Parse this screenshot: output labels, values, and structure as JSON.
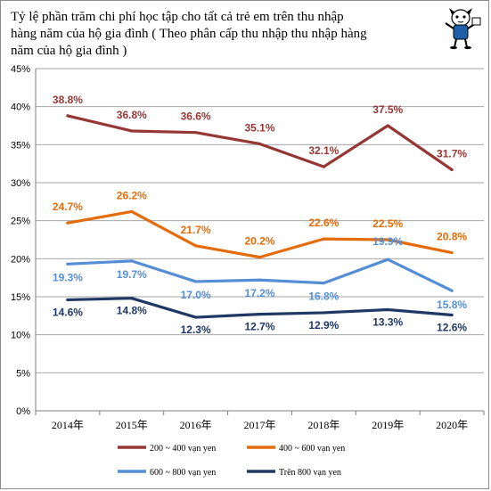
{
  "chart_data": {
    "type": "line",
    "title_lines": [
      "Tỷ lệ phần trăm chi phí học tập cho tất cả trẻ em trên thu nhập",
      "hàng năm của hộ gia đình ( Theo phân cấp thu nhập thu nhập hàng",
      "năm của hộ gia đình )"
    ],
    "categories": [
      "2014年",
      "2015年",
      "2016年",
      "2017年",
      "2018年",
      "2019年",
      "2020年"
    ],
    "ylim": [
      0,
      45
    ],
    "yticks": [
      "0%",
      "5%",
      "10%",
      "15%",
      "20%",
      "25%",
      "30%",
      "35%",
      "40%",
      "45%"
    ],
    "grid": true,
    "series": [
      {
        "name": "200 ~ 400 vạn yen",
        "color": "#953735",
        "values": [
          38.8,
          36.8,
          36.6,
          35.1,
          32.1,
          37.5,
          31.7
        ],
        "labels": [
          "38.8%",
          "36.8%",
          "36.6%",
          "35.1%",
          "32.1%",
          "37.5%",
          "31.7%"
        ]
      },
      {
        "name": "400 ~ 600 vạn yen",
        "color": "#e46c0a",
        "values": [
          24.7,
          26.2,
          21.7,
          20.2,
          22.6,
          22.5,
          20.8
        ],
        "labels": [
          "24.7%",
          "26.2%",
          "21.7%",
          "20.2%",
          "22.6%",
          "22.5%",
          "20.8%"
        ]
      },
      {
        "name": "600 ~ 800 vạn yen",
        "color": "#558ed5",
        "values": [
          19.3,
          19.7,
          17.0,
          17.2,
          16.8,
          19.9,
          15.8
        ],
        "labels": [
          "19.3%",
          "19.7%",
          "17.0%",
          "17.2%",
          "16.8%",
          "19.9%",
          "15.8%"
        ]
      },
      {
        "name": "Trên 800 vạn yen",
        "color": "#1f3864",
        "values": [
          14.6,
          14.8,
          12.3,
          12.7,
          12.9,
          13.3,
          12.6
        ],
        "labels": [
          "14.6%",
          "14.8%",
          "12.3%",
          "12.7%",
          "12.9%",
          "13.3%",
          "12.6%"
        ]
      }
    ],
    "legend_position": "bottom"
  },
  "mascot_icon": "cartoon-character-icon"
}
